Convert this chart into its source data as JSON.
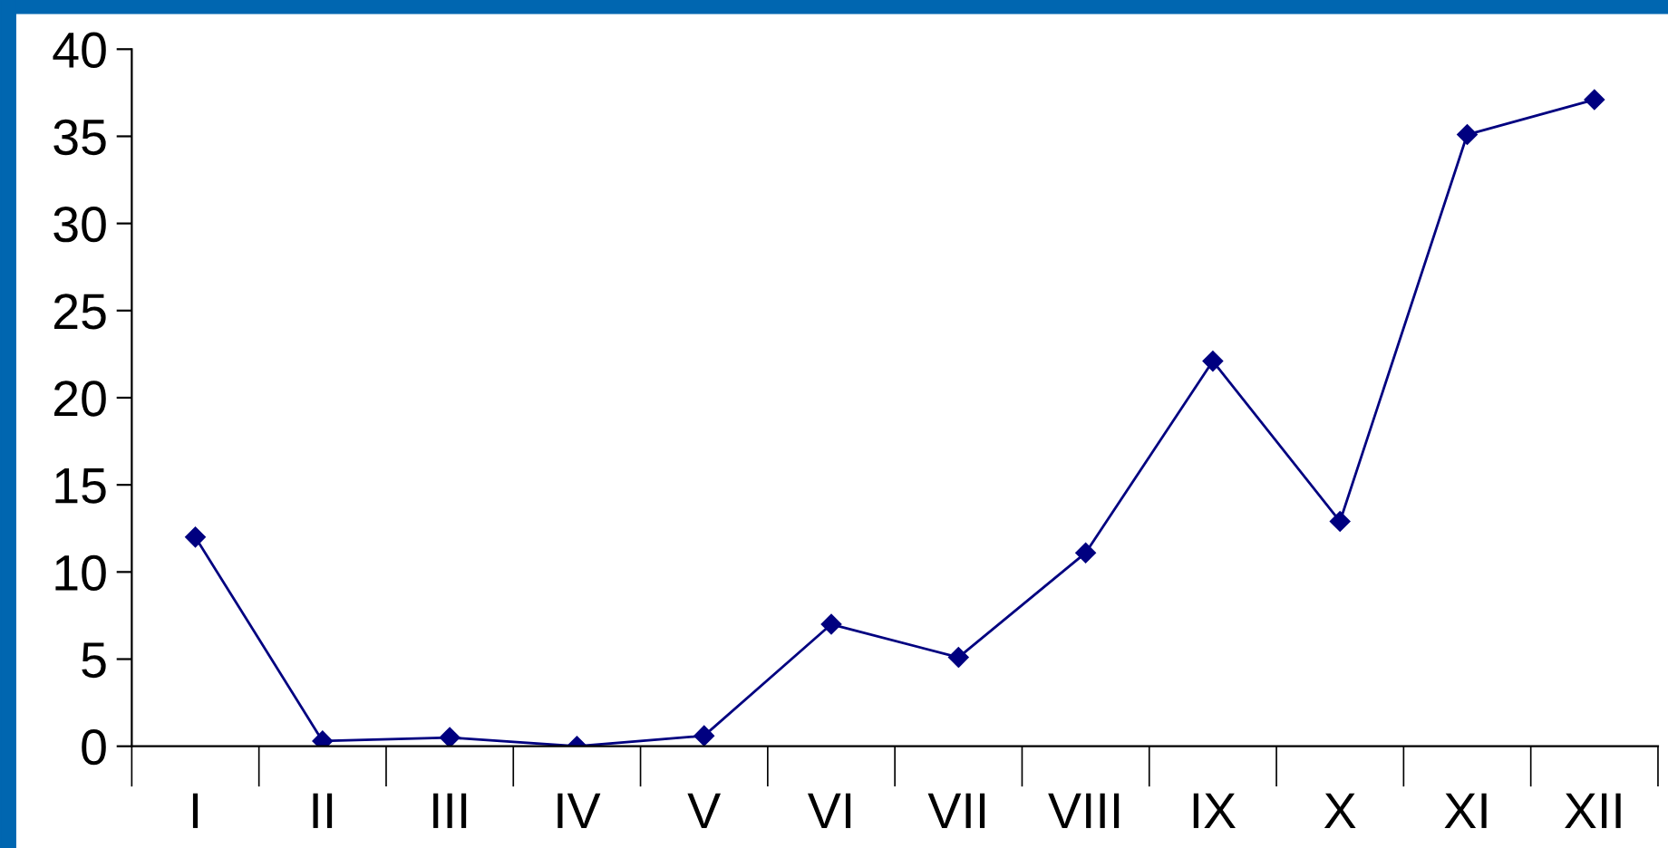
{
  "chart_data": {
    "type": "line",
    "categories": [
      "I",
      "II",
      "III",
      "IV",
      "V",
      "VI",
      "VII",
      "VIII",
      "IX",
      "X",
      "XI",
      "XII"
    ],
    "series": [
      {
        "color": "#000080",
        "values": [
          12.0,
          0.3,
          0.5,
          0.0,
          0.6,
          7.0,
          5.1,
          11.1,
          22.1,
          12.9,
          35.1,
          37.1
        ]
      }
    ],
    "ylim": [
      0,
      40
    ],
    "yticks": [
      0,
      5,
      10,
      15,
      20,
      25,
      30,
      35,
      40
    ],
    "marker": "diamond",
    "line_style": "solid",
    "grid": false,
    "legend": false
  }
}
